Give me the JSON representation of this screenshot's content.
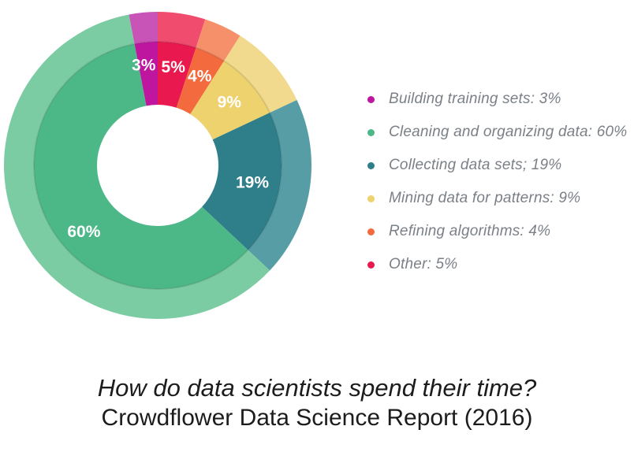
{
  "chart_data": {
    "type": "pie",
    "variant": "donut-double-ring",
    "title": "How do data scientists spend their time?",
    "subtitle": "Crowdflower Data Science Report (2016)",
    "unit": "%",
    "legend_position": "right",
    "start_angle_deg": 0,
    "clockwise": true,
    "draw_order_clockwise_from_top": [
      "Other",
      "Refining algorithms",
      "Mining data for patterns",
      "Collecting data sets",
      "Cleaning and organizing data",
      "Building training sets"
    ],
    "slices": [
      {
        "id": "building-training-sets",
        "label": "Building training sets",
        "legend_text": "Building training sets: 3%",
        "value": 3,
        "value_label": "3%",
        "color": "#BF16A0",
        "outer_color": "#C754B6",
        "label_angle_deg": 352,
        "label_radius": 128
      },
      {
        "id": "cleaning-and-organizing-data",
        "label": "Cleaning and organizing data",
        "legend_text": "Cleaning and organizing data: 60%",
        "value": 60,
        "value_label": "60%",
        "color": "#4DB887",
        "outer_color": "#7CCCA3",
        "label_angle_deg": 228,
        "label_radius": 126
      },
      {
        "id": "collecting-data-sets",
        "label": "Collecting data sets",
        "legend_text": "Collecting data sets; 19%",
        "value": 19,
        "value_label": "19%",
        "color": "#2F7F8A",
        "outer_color": "#579DA6",
        "label_angle_deg": 100.5,
        "label_radius": 122
      },
      {
        "id": "mining-data-for-patterns",
        "label": "Mining data for patterns",
        "legend_text": "Mining data for patterns: 9%",
        "value": 9,
        "value_label": "9%",
        "color": "#EDD26E",
        "outer_color": "#F1DA8D",
        "label_angle_deg": 48.6,
        "label_radius": 121
      },
      {
        "id": "refining-algorithms",
        "label": "Refining algorithms",
        "legend_text": "Refining algorithms: 4%",
        "value": 4,
        "value_label": "4%",
        "color": "#F26A3D",
        "outer_color": "#F5906A",
        "label_angle_deg": 25.2,
        "label_radius": 125
      },
      {
        "id": "other",
        "label": "Other",
        "legend_text": "Other: 5%",
        "value": 5,
        "value_label": "5%",
        "color": "#E9194F",
        "outer_color": "#F04C6E",
        "label_angle_deg": 9,
        "label_radius": 126
      }
    ],
    "colors": {
      "slice_value_label_text": "#ffffff",
      "legend_text": "#7b8087",
      "title_text": "#1c1c1c",
      "ring_divider": "rgba(0,0,0,0.10)"
    }
  }
}
